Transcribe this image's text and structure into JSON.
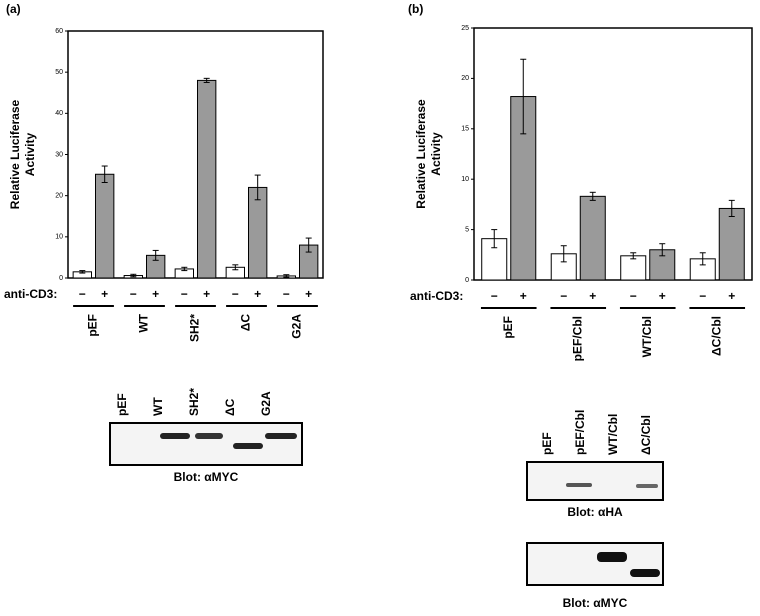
{
  "chart_data": [
    {
      "type": "bar",
      "panel_label": "(a)",
      "ylabel": [
        "Relative Luciferase",
        "Activity"
      ],
      "treatment_label": "anti-CD3:",
      "categories": [
        "pEF",
        "WT",
        "SH2*",
        "ΔC",
        "G2A"
      ],
      "series": [
        {
          "name": "−",
          "color": "#ffffff",
          "values": [
            1.5,
            0.6,
            2.2,
            2.6,
            0.5
          ],
          "errors": [
            0.3,
            0.3,
            0.4,
            0.6,
            0.3
          ]
        },
        {
          "name": "+",
          "color": "#9a9a9a",
          "values": [
            25.2,
            5.5,
            48,
            22,
            8
          ],
          "errors": [
            2,
            1.2,
            0.5,
            3,
            1.7
          ]
        }
      ],
      "ylim": [
        0,
        60
      ],
      "yticks": [
        0,
        10,
        20,
        30,
        40,
        50,
        60
      ]
    },
    {
      "type": "bar",
      "panel_label": "(b)",
      "ylabel": [
        "Relative Luciferase",
        "Activity"
      ],
      "treatment_label": "anti-CD3:",
      "categories": [
        "pEF",
        "pEF/Cbl",
        "WT/Cbl",
        "ΔC/Cbl"
      ],
      "series": [
        {
          "name": "−",
          "color": "#ffffff",
          "values": [
            4.1,
            2.6,
            2.4,
            2.1
          ],
          "errors": [
            0.9,
            0.8,
            0.3,
            0.6
          ]
        },
        {
          "name": "+",
          "color": "#9a9a9a",
          "values": [
            18.2,
            8.3,
            3.0,
            7.1
          ],
          "errors": [
            3.7,
            0.4,
            0.6,
            0.8
          ]
        }
      ],
      "ylim": [
        0,
        25
      ],
      "yticks": [
        0,
        5,
        10,
        15,
        20,
        25
      ]
    }
  ],
  "blots": [
    {
      "lanes": [
        "pEF",
        "WT",
        "SH2*",
        "ΔC",
        "G2A"
      ],
      "caption": "Blot: αMYC"
    },
    {
      "lanes": [
        "pEF",
        "pEF/Cbl",
        "WT/Cbl",
        "ΔC/Cbl"
      ],
      "caption": "Blot: αHA"
    },
    {
      "caption": "Blot: αMYC"
    }
  ]
}
